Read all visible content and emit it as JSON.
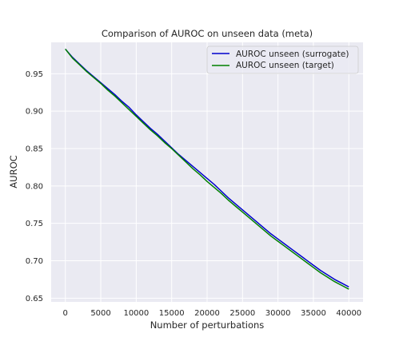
{
  "chart_data": {
    "type": "line",
    "title": "Comparison of AUROC on unseen data (meta)",
    "xlabel": "Number of perturbations",
    "ylabel": "AUROC",
    "xlim": [
      -2000,
      42000
    ],
    "ylim": [
      0.645,
      0.992
    ],
    "xticks": [
      0,
      5000,
      10000,
      15000,
      20000,
      25000,
      30000,
      35000,
      40000
    ],
    "yticks": [
      0.65,
      0.7,
      0.75,
      0.8,
      0.85,
      0.9,
      0.95
    ],
    "ytick_labels": [
      "0.65",
      "0.70",
      "0.75",
      "0.80",
      "0.85",
      "0.90",
      "0.95"
    ],
    "grid": true,
    "background": "#eaeaf2",
    "legend_position": "top-right",
    "series": [
      {
        "name": "AUROC unseen (surrogate)",
        "color": "#0000cc",
        "x": [
          0,
          1000,
          2000,
          3000,
          4000,
          5000,
          6000,
          7000,
          8000,
          9000,
          10000,
          11000,
          12000,
          13000,
          14000,
          15000,
          16000,
          17000,
          18000,
          19000,
          20000,
          21000,
          22000,
          23000,
          24000,
          25000,
          26000,
          27000,
          28000,
          29000,
          30000,
          31000,
          32000,
          33000,
          34000,
          35000,
          36000,
          37000,
          38000,
          39000,
          40000
        ],
        "values": [
          0.983,
          0.972,
          0.963,
          0.954,
          0.946,
          0.938,
          0.93,
          0.922,
          0.913,
          0.905,
          0.895,
          0.886,
          0.877,
          0.869,
          0.86,
          0.851,
          0.842,
          0.834,
          0.826,
          0.818,
          0.81,
          0.802,
          0.793,
          0.784,
          0.776,
          0.768,
          0.76,
          0.752,
          0.744,
          0.736,
          0.729,
          0.722,
          0.715,
          0.708,
          0.701,
          0.694,
          0.687,
          0.681,
          0.675,
          0.67,
          0.665
        ]
      },
      {
        "name": "AUROC unseen (target)",
        "color": "#008000",
        "x": [
          0,
          1000,
          2000,
          3000,
          4000,
          5000,
          6000,
          7000,
          8000,
          9000,
          10000,
          11000,
          12000,
          13000,
          14000,
          15000,
          16000,
          17000,
          18000,
          19000,
          20000,
          21000,
          22000,
          23000,
          24000,
          25000,
          26000,
          27000,
          28000,
          29000,
          30000,
          31000,
          32000,
          33000,
          34000,
          35000,
          36000,
          37000,
          38000,
          39000,
          40000
        ],
        "values": [
          0.983,
          0.971,
          0.962,
          0.953,
          0.945,
          0.937,
          0.928,
          0.92,
          0.911,
          0.902,
          0.893,
          0.884,
          0.875,
          0.867,
          0.858,
          0.85,
          0.841,
          0.832,
          0.823,
          0.815,
          0.806,
          0.798,
          0.79,
          0.781,
          0.773,
          0.765,
          0.757,
          0.749,
          0.741,
          0.733,
          0.726,
          0.719,
          0.712,
          0.705,
          0.698,
          0.691,
          0.684,
          0.678,
          0.672,
          0.667,
          0.662
        ]
      }
    ]
  }
}
